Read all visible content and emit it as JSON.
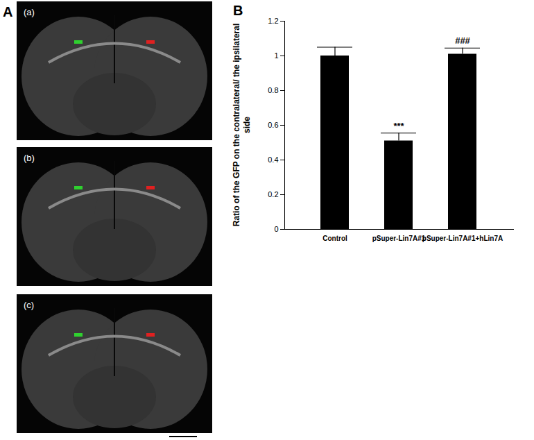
{
  "chart_data": {
    "type": "bar",
    "panel_label": "B",
    "categories": [
      "Control",
      "pSuper-Lin7A#1",
      "pSuper-Lin7A#1+hLin7A"
    ],
    "values": [
      1.0,
      0.51,
      1.01
    ],
    "errors": [
      0.05,
      0.045,
      0.035
    ],
    "color": "#000000",
    "ylabel": "Ratio of the GFP on the contralateral/ the ipsilateral side",
    "ylim": [
      0,
      1.2
    ],
    "yticks": [
      0,
      0.2,
      0.4,
      0.6,
      0.8,
      1,
      1.2
    ],
    "grid": false,
    "annotations": [
      {
        "x": "pSuper-Lin7A#1",
        "text": "***"
      },
      {
        "x": "pSuper-Lin7A#1+hLin7A",
        "text": "###"
      }
    ]
  },
  "images": {
    "panel_label": "A",
    "labels": [
      "(a)",
      "(b)",
      "(c)"
    ]
  }
}
